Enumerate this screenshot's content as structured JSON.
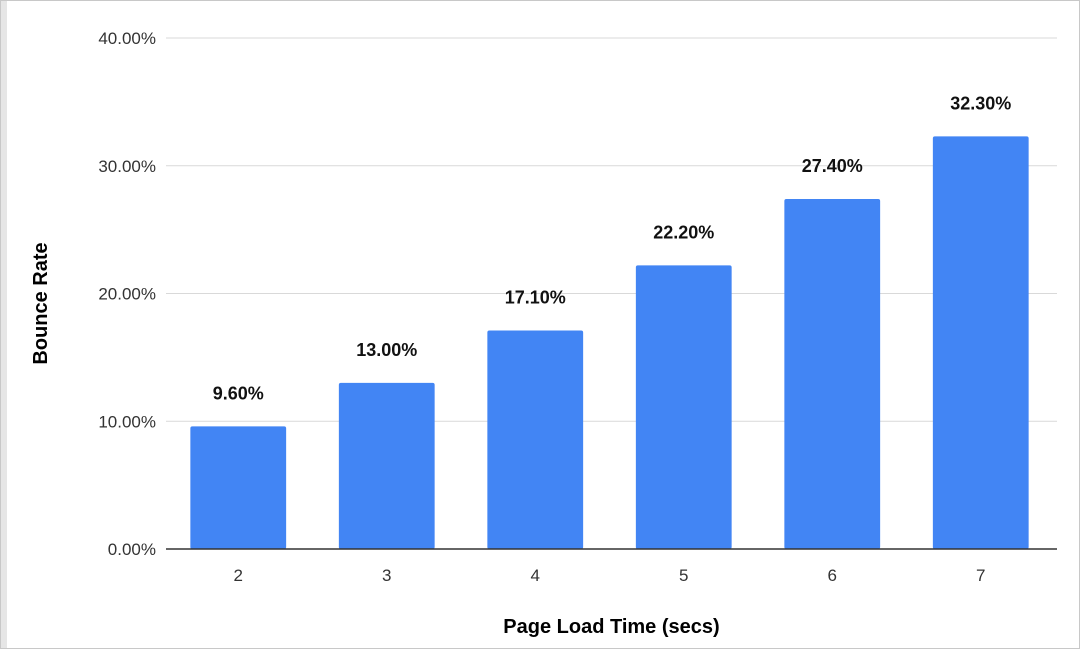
{
  "chart_data": {
    "type": "bar",
    "title": "",
    "xlabel": "Page Load Time (secs)",
    "ylabel": "Bounce Rate",
    "categories": [
      "2",
      "3",
      "4",
      "5",
      "6",
      "7"
    ],
    "values": [
      9.6,
      13.0,
      17.1,
      22.2,
      27.4,
      32.3
    ],
    "data_labels": [
      "9.60%",
      "13.00%",
      "17.10%",
      "22.20%",
      "27.40%",
      "32.30%"
    ],
    "ylim": [
      0,
      40
    ],
    "yticks": [
      0,
      10,
      20,
      30,
      40
    ],
    "ytick_labels": [
      "0.00%",
      "10.00%",
      "20.00%",
      "30.00%",
      "40.00%"
    ],
    "grid": true,
    "legend": "none",
    "bar_color": "#4285F4",
    "grid_color": "#d9d9d9",
    "axis_color": "#333333"
  }
}
